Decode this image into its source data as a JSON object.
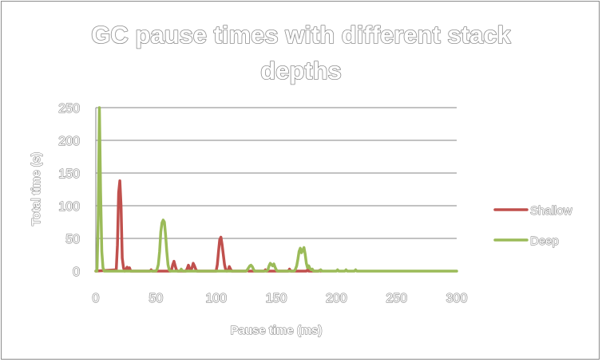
{
  "chart_data": {
    "type": "line",
    "title_lines": [
      "GC pause times with different stack",
      "depths"
    ],
    "xlabel": "Pause time (ms)",
    "ylabel": "Total time (s)",
    "xlim": [
      0,
      300
    ],
    "ylim": [
      0,
      250
    ],
    "xticks": [
      "0",
      "50",
      "100",
      "150",
      "200",
      "250",
      "300"
    ],
    "yticks": [
      "0",
      "50",
      "100",
      "150",
      "200",
      "250"
    ],
    "grid": "horizontal",
    "legend_position": "right",
    "series": [
      {
        "name": "Shallow",
        "color": "#c0504d",
        "points": [
          [
            0,
            0
          ],
          [
            17,
            2
          ],
          [
            18,
            40
          ],
          [
            19,
            120
          ],
          [
            20,
            138
          ],
          [
            21,
            100
          ],
          [
            22,
            20
          ],
          [
            23,
            5
          ],
          [
            24,
            0
          ],
          [
            25,
            3
          ],
          [
            26,
            6
          ],
          [
            27,
            3
          ],
          [
            28,
            5
          ],
          [
            29,
            0
          ],
          [
            45,
            0
          ],
          [
            46,
            2
          ],
          [
            47,
            0
          ],
          [
            62,
            0
          ],
          [
            63,
            2
          ],
          [
            64,
            10
          ],
          [
            65,
            15
          ],
          [
            66,
            8
          ],
          [
            67,
            2
          ],
          [
            68,
            0
          ],
          [
            75,
            0
          ],
          [
            76,
            4
          ],
          [
            77,
            9
          ],
          [
            78,
            4
          ],
          [
            79,
            1
          ],
          [
            80,
            5
          ],
          [
            81,
            12
          ],
          [
            82,
            8
          ],
          [
            83,
            3
          ],
          [
            84,
            0
          ],
          [
            100,
            0
          ],
          [
            101,
            10
          ],
          [
            102,
            30
          ],
          [
            103,
            48
          ],
          [
            104,
            52
          ],
          [
            105,
            40
          ],
          [
            106,
            25
          ],
          [
            107,
            10
          ],
          [
            108,
            2
          ],
          [
            109,
            0
          ],
          [
            110,
            1
          ],
          [
            111,
            7
          ],
          [
            112,
            3
          ],
          [
            113,
            0
          ],
          [
            125,
            0
          ],
          [
            126,
            2
          ],
          [
            127,
            0
          ],
          [
            140,
            0
          ],
          [
            141,
            2
          ],
          [
            142,
            0
          ],
          [
            160,
            0
          ],
          [
            161,
            3
          ],
          [
            162,
            0
          ],
          [
            175,
            0
          ],
          [
            176,
            2
          ],
          [
            177,
            0
          ],
          [
            185,
            0
          ],
          [
            186,
            1
          ],
          [
            187,
            0
          ]
        ]
      },
      {
        "name": "Deep",
        "color": "#9bbb59",
        "points": [
          [
            0,
            0
          ],
          [
            1,
            0
          ],
          [
            2,
            80
          ],
          [
            3,
            250
          ],
          [
            4,
            120
          ],
          [
            5,
            30
          ],
          [
            6,
            5
          ],
          [
            7,
            0
          ],
          [
            50,
            0
          ],
          [
            51,
            3
          ],
          [
            52,
            10
          ],
          [
            53,
            30
          ],
          [
            54,
            60
          ],
          [
            55,
            74
          ],
          [
            56,
            78
          ],
          [
            57,
            75
          ],
          [
            58,
            55
          ],
          [
            59,
            30
          ],
          [
            60,
            10
          ],
          [
            61,
            2
          ],
          [
            62,
            0
          ],
          [
            70,
            0
          ],
          [
            71,
            3
          ],
          [
            72,
            0
          ],
          [
            125,
            0
          ],
          [
            126,
            2
          ],
          [
            127,
            5
          ],
          [
            128,
            8
          ],
          [
            129,
            9
          ],
          [
            130,
            7
          ],
          [
            131,
            3
          ],
          [
            132,
            0
          ],
          [
            142,
            0
          ],
          [
            143,
            2
          ],
          [
            144,
            8
          ],
          [
            145,
            12
          ],
          [
            146,
            10
          ],
          [
            147,
            8
          ],
          [
            148,
            11
          ],
          [
            149,
            6
          ],
          [
            150,
            2
          ],
          [
            151,
            0
          ],
          [
            165,
            0
          ],
          [
            166,
            3
          ],
          [
            167,
            8
          ],
          [
            168,
            18
          ],
          [
            169,
            30
          ],
          [
            170,
            35
          ],
          [
            171,
            28
          ],
          [
            172,
            32
          ],
          [
            173,
            36
          ],
          [
            174,
            26
          ],
          [
            175,
            12
          ],
          [
            176,
            5
          ],
          [
            177,
            8
          ],
          [
            178,
            4
          ],
          [
            179,
            2
          ],
          [
            180,
            3
          ],
          [
            181,
            0
          ],
          [
            186,
            0
          ],
          [
            187,
            2
          ],
          [
            188,
            0
          ],
          [
            200,
            0
          ],
          [
            201,
            2
          ],
          [
            202,
            0
          ],
          [
            207,
            0
          ],
          [
            208,
            2
          ],
          [
            209,
            0
          ],
          [
            215,
            0
          ],
          [
            216,
            2
          ],
          [
            217,
            0
          ],
          [
            300,
            0
          ]
        ]
      }
    ]
  }
}
